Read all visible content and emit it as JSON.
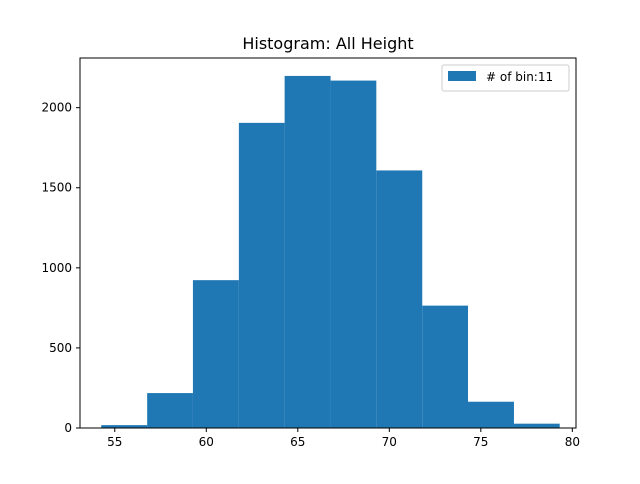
{
  "chart_data": {
    "type": "bar",
    "title": "Histogram: All Height",
    "xlabel": "",
    "ylabel": "",
    "xlim": [
      53.1,
      80.2
    ],
    "ylim": [
      0,
      2310
    ],
    "bin_edges": [
      54.26,
      56.77,
      59.27,
      61.78,
      64.28,
      66.79,
      69.29,
      71.8,
      74.3,
      76.81,
      79.31
    ],
    "values": [
      18,
      218,
      923,
      1905,
      2198,
      2169,
      1608,
      764,
      164,
      27
    ],
    "xticks": [
      55,
      60,
      65,
      70,
      75,
      80
    ],
    "yticks": [
      0,
      500,
      1000,
      1500,
      2000
    ],
    "legend": {
      "label": "# of bin:11",
      "placement": "top-right"
    },
    "colors": {
      "bar": "#1f77b4",
      "frame": "#000000"
    }
  }
}
